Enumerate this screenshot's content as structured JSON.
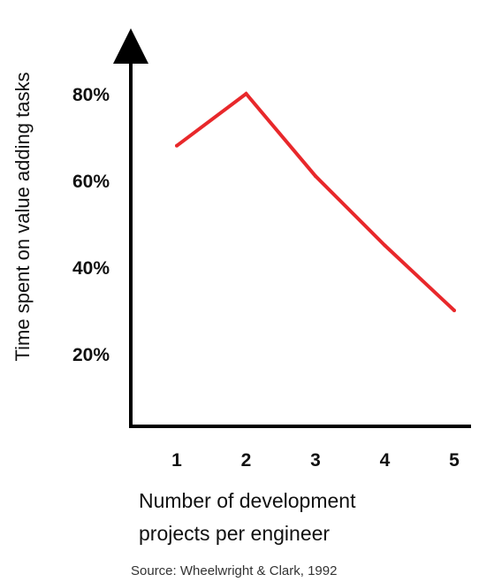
{
  "chart_data": {
    "type": "line",
    "title": "",
    "xlabel_lines": [
      "Number of development",
      "projects per engineer"
    ],
    "ylabel": "Time spent on value adding tasks",
    "x": [
      1,
      2,
      3,
      4,
      5
    ],
    "x_tick_labels": [
      "1",
      "2",
      "3",
      "4",
      "5"
    ],
    "y_tick_values": [
      20,
      40,
      60,
      80
    ],
    "y_tick_labels": [
      "20%",
      "40%",
      "60%",
      "80%"
    ],
    "ylim": [
      0,
      100
    ],
    "grid": false,
    "legend": "none",
    "series": [
      {
        "values": [
          68,
          80,
          61,
          45,
          30
        ],
        "color": "#e8282b"
      }
    ],
    "source": "Source: Wheelwright & Clark, 1992"
  }
}
